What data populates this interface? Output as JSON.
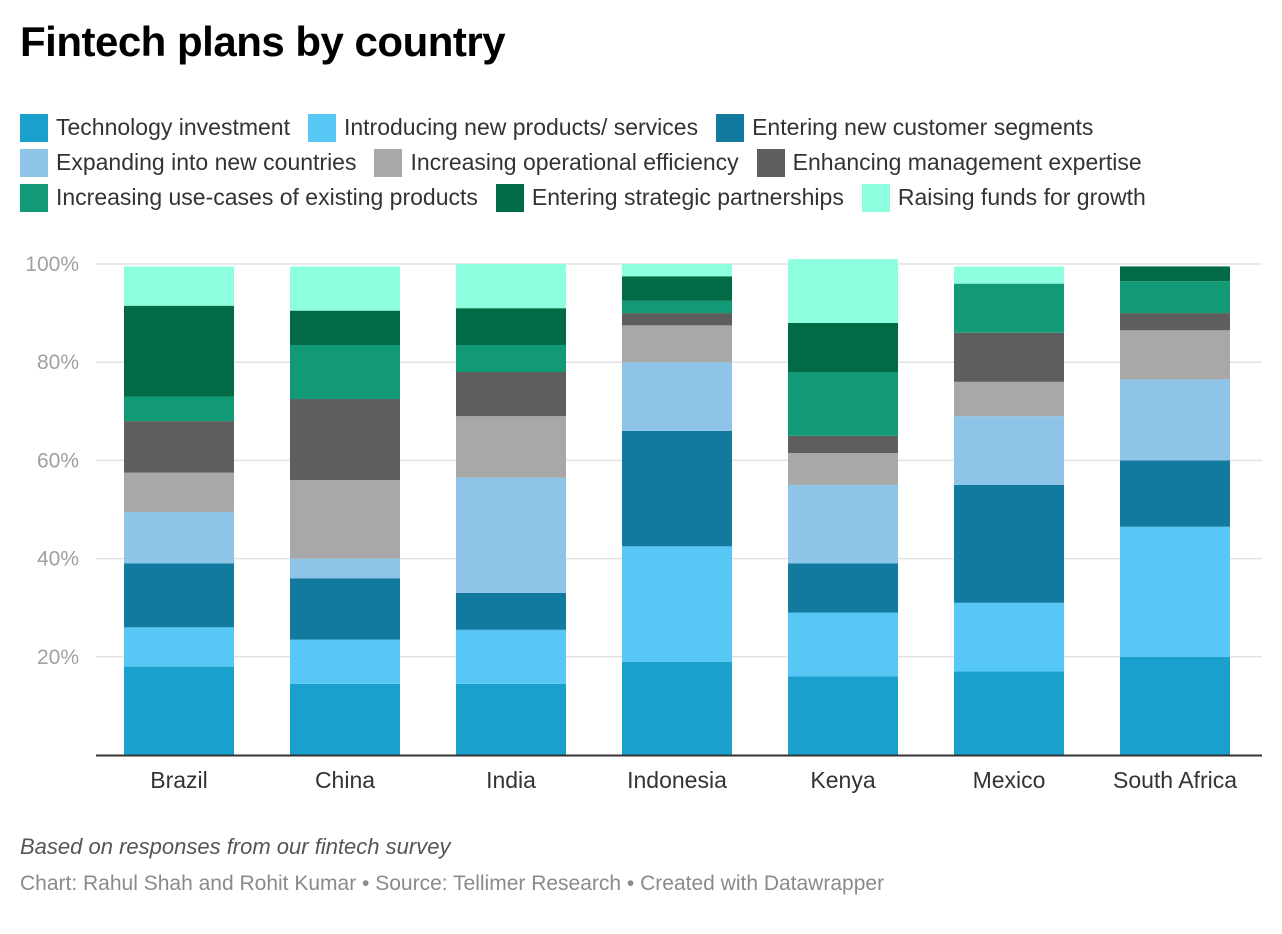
{
  "title": "Fintech plans by country",
  "note": "Based on responses from our fintech survey",
  "credits": "Chart: Rahul Shah and Rohit Kumar • Source: Tellimer Research • Created with Datawrapper",
  "colors": {
    "Technology investment": "#19a0cd",
    "Introducing new products/ services": "#57c8f6",
    "Entering new customer segments": "#127a9e",
    "Expanding into new countries": "#8dc4e8",
    "Increasing operational efficiency": "#a8a8a8",
    "Enhancing management expertise": "#5e5e5e",
    "Increasing use-cases of existing products": "#129a77",
    "Entering strategic partnerships": "#006b45",
    "Raising funds for growth": "#8effde"
  },
  "chart_data": {
    "type": "bar",
    "stacked": true,
    "categories": [
      "Brazil",
      "China",
      "India",
      "Indonesia",
      "Kenya",
      "Mexico",
      "South Africa"
    ],
    "ylim": [
      0,
      100
    ],
    "yticks": [
      20,
      40,
      60,
      80,
      100
    ],
    "ytick_labels": [
      "20%",
      "40%",
      "60%",
      "80%",
      "100%"
    ],
    "xlabel": "",
    "ylabel": "",
    "series": [
      {
        "name": "Technology investment",
        "values": [
          18.0,
          14.5,
          14.5,
          19.0,
          16.0,
          17.0,
          20.0
        ]
      },
      {
        "name": "Introducing new products/ services",
        "values": [
          8.0,
          9.0,
          11.0,
          23.5,
          13.0,
          14.0,
          26.5
        ]
      },
      {
        "name": "Entering new customer segments",
        "values": [
          13.0,
          12.5,
          7.5,
          23.5,
          10.0,
          24.0,
          13.5
        ]
      },
      {
        "name": "Expanding into new countries",
        "values": [
          10.5,
          4.0,
          23.5,
          14.0,
          16.0,
          14.0,
          16.5
        ]
      },
      {
        "name": "Increasing operational efficiency",
        "values": [
          8.0,
          16.0,
          12.5,
          7.5,
          6.5,
          7.0,
          10.0
        ]
      },
      {
        "name": "Enhancing management expertise",
        "values": [
          10.5,
          16.5,
          9.0,
          2.5,
          3.5,
          10.0,
          3.5
        ]
      },
      {
        "name": "Increasing use-cases of existing products",
        "values": [
          5.0,
          11.0,
          5.5,
          2.5,
          13.0,
          10.0,
          6.5
        ]
      },
      {
        "name": "Entering strategic partnerships",
        "values": [
          18.5,
          7.0,
          7.5,
          5.0,
          10.0,
          0,
          3.0
        ]
      },
      {
        "name": "Raising funds for growth",
        "values": [
          8.0,
          9.0,
          9.0,
          2.5,
          13.0,
          3.5,
          0
        ]
      }
    ]
  }
}
